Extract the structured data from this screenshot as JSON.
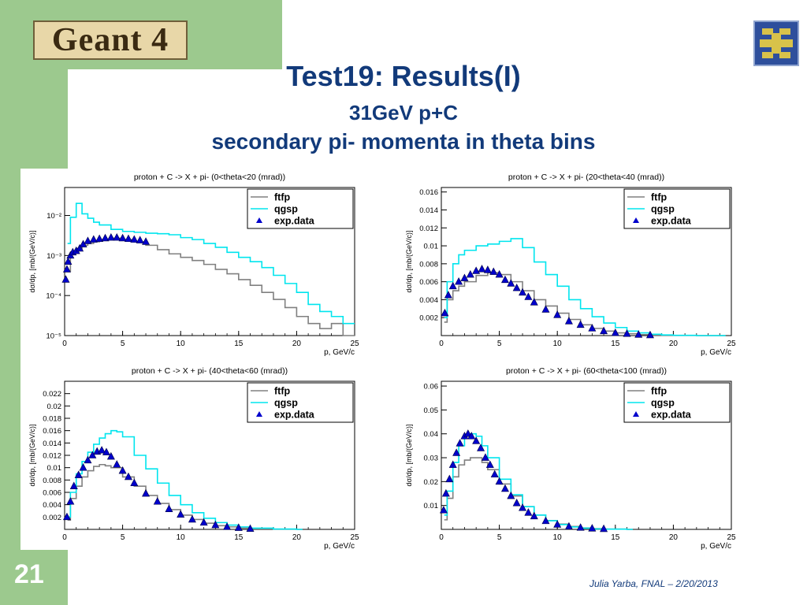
{
  "slide": {
    "logo_text": "Geant 4",
    "title": "Test19: Results(I)",
    "subtitle1": "31GeV p+C",
    "subtitle2": "secondary pi- momenta in theta bins",
    "number": "21",
    "footer": "Julia Yarba, FNAL – 2/20/2013",
    "colors": {
      "sidebar": "#9cc98e",
      "title": "#123a7a",
      "ftfp": "#808080",
      "qgsp": "#00e5ee",
      "exp": "#0000cc"
    }
  },
  "chart_data": [
    {
      "type": "line",
      "title": "proton + C -> X + pi-  (0<theta<20 (mrad))",
      "xlabel": "p, GeV/c",
      "ylabel": "dσ/dp, [mb/(GeV/c)]",
      "log_y": true,
      "xlim": [
        0,
        25
      ],
      "ylim": [
        1e-05,
        0.05
      ],
      "x_ticks": [
        "0",
        "5",
        "10",
        "15",
        "20",
        "25"
      ],
      "y_ticks": [
        "10⁻⁵",
        "10⁻⁴",
        "10⁻³",
        "10⁻²"
      ],
      "legend": "top-right",
      "series": [
        {
          "name": "ftfp",
          "x": [
            0.25,
            0.5,
            1,
            1.5,
            2,
            2.5,
            3,
            4,
            5,
            6,
            7,
            8,
            9,
            10,
            11,
            12,
            13,
            14,
            15,
            16,
            17,
            18,
            19,
            20,
            21,
            22,
            23,
            24,
            24.5
          ],
          "values": [
            0.0004,
            0.0012,
            0.0015,
            0.0018,
            0.002,
            0.0022,
            0.0025,
            0.0027,
            0.0025,
            0.0022,
            0.0018,
            0.0014,
            0.0011,
            0.0009,
            0.00075,
            0.0006,
            0.00045,
            0.00035,
            0.00025,
            0.00018,
            0.00012,
            8e-05,
            5e-05,
            3e-05,
            2e-05,
            1.5e-05,
            2e-05,
            1e-05,
            1e-05
          ]
        },
        {
          "name": "qgsp",
          "x": [
            0.25,
            0.5,
            1,
            1.5,
            2,
            2.5,
            3,
            4,
            5,
            6,
            7,
            8,
            9,
            10,
            11,
            12,
            13,
            14,
            15,
            16,
            17,
            18,
            19,
            20,
            21,
            22,
            23,
            24,
            24.5
          ],
          "values": [
            0.002,
            0.009,
            0.02,
            0.011,
            0.0085,
            0.0068,
            0.0058,
            0.0045,
            0.004,
            0.0038,
            0.0036,
            0.0035,
            0.0033,
            0.0028,
            0.0025,
            0.002,
            0.0016,
            0.0012,
            0.0009,
            0.0007,
            0.0005,
            0.00032,
            0.0002,
            0.00012,
            6e-05,
            4e-05,
            3e-05,
            2e-05,
            2e-05
          ]
        },
        {
          "name": "exp.data",
          "x": [
            0.1,
            0.2,
            0.3,
            0.5,
            0.7,
            1.0,
            1.3,
            1.6,
            2.0,
            2.5,
            3.0,
            3.5,
            4.0,
            4.5,
            5.0,
            5.5,
            6.0,
            6.5,
            7.0
          ],
          "values": [
            0.00025,
            0.00045,
            0.0007,
            0.001,
            0.0012,
            0.0013,
            0.0015,
            0.0019,
            0.0023,
            0.0025,
            0.0026,
            0.0027,
            0.0028,
            0.0028,
            0.0027,
            0.0026,
            0.0025,
            0.0024,
            0.0022
          ]
        }
      ]
    },
    {
      "type": "line",
      "title": "proton + C -> X + pi-  (20<theta<40 (mrad))",
      "xlabel": "p, GeV/c",
      "ylabel": "dσ/dp, [mb/(GeV/c)]",
      "xlim": [
        0,
        25
      ],
      "ylim": [
        0,
        0.0165
      ],
      "x_ticks": [
        "0",
        "5",
        "10",
        "15",
        "20",
        "25"
      ],
      "y_ticks": [
        "0.002",
        "0.004",
        "0.006",
        "0.008",
        "0.01",
        "0.012",
        "0.014",
        "0.016"
      ],
      "legend": "top-right",
      "series": [
        {
          "name": "ftfp",
          "x": [
            0.25,
            0.5,
            1,
            1.5,
            2,
            3,
            4,
            5,
            6,
            7,
            8,
            9,
            10,
            11,
            12,
            13,
            14,
            15,
            16,
            17,
            18,
            19,
            20,
            22,
            24
          ],
          "values": [
            0.0015,
            0.004,
            0.005,
            0.0055,
            0.006,
            0.0067,
            0.007,
            0.0068,
            0.006,
            0.005,
            0.004,
            0.0033,
            0.0025,
            0.0018,
            0.0012,
            0.0008,
            0.0005,
            0.0003,
            0.0002,
            0.0001,
            5e-05,
            2e-05,
            1e-05,
            0.0,
            0.0
          ]
        },
        {
          "name": "qgsp",
          "x": [
            0.25,
            0.5,
            1,
            1.5,
            2,
            3,
            4,
            5,
            6,
            7,
            8,
            9,
            10,
            11,
            12,
            13,
            14,
            15,
            16,
            17,
            18,
            19,
            20,
            22,
            24
          ],
          "values": [
            0.002,
            0.006,
            0.008,
            0.009,
            0.0095,
            0.01,
            0.0102,
            0.0105,
            0.0108,
            0.0098,
            0.0082,
            0.0068,
            0.0055,
            0.004,
            0.003,
            0.0021,
            0.0014,
            0.0009,
            0.0005,
            0.0003,
            0.00015,
            7e-05,
            3e-05,
            0.0,
            0.0
          ]
        },
        {
          "name": "exp.data",
          "x": [
            0.3,
            0.6,
            1,
            1.5,
            2,
            2.5,
            3,
            3.5,
            4,
            4.5,
            5,
            5.5,
            6,
            6.5,
            7,
            7.5,
            8,
            9,
            10,
            11,
            12,
            13,
            14,
            15,
            16,
            17,
            18
          ],
          "values": [
            0.0025,
            0.0045,
            0.0055,
            0.006,
            0.0064,
            0.0068,
            0.0072,
            0.0074,
            0.0073,
            0.0071,
            0.0068,
            0.0062,
            0.0058,
            0.0053,
            0.0048,
            0.0043,
            0.0037,
            0.0029,
            0.0023,
            0.0016,
            0.0012,
            0.0008,
            0.0005,
            0.0003,
            0.0002,
            0.0001,
            5e-05
          ]
        }
      ]
    },
    {
      "type": "line",
      "title": "proton + C -> X + pi-  (40<theta<60 (mrad))",
      "xlabel": "p, GeV/c",
      "ylabel": "dσ/dp, [mb/(GeV/c)]",
      "xlim": [
        0,
        25
      ],
      "ylim": [
        0,
        0.024
      ],
      "x_ticks": [
        "0",
        "5",
        "10",
        "15",
        "20",
        "25"
      ],
      "y_ticks": [
        "0.002",
        "0.004",
        "0.006",
        "0.008",
        "0.01",
        "0.012",
        "0.014",
        "0.016",
        "0.018",
        "0.02",
        "0.022"
      ],
      "legend": "top-right",
      "series": [
        {
          "name": "ftfp",
          "x": [
            0.25,
            0.5,
            1,
            1.5,
            2,
            2.5,
            3,
            3.5,
            4,
            5,
            6,
            7,
            8,
            9,
            10,
            11,
            12,
            13,
            14,
            15,
            16,
            18,
            20
          ],
          "values": [
            0.0015,
            0.005,
            0.007,
            0.0085,
            0.0095,
            0.0102,
            0.0105,
            0.0103,
            0.01,
            0.0085,
            0.007,
            0.0055,
            0.0042,
            0.0032,
            0.0023,
            0.0016,
            0.001,
            0.0006,
            0.0004,
            0.0002,
            0.0001,
            2e-05,
            0.0
          ]
        },
        {
          "name": "qgsp",
          "x": [
            0.25,
            0.5,
            1,
            1.5,
            2,
            2.5,
            3,
            3.5,
            4,
            4.5,
            5,
            6,
            7,
            8,
            9,
            10,
            11,
            12,
            13,
            14,
            15,
            16,
            18,
            20
          ],
          "values": [
            0.002,
            0.006,
            0.009,
            0.011,
            0.0125,
            0.0138,
            0.0148,
            0.0155,
            0.016,
            0.0158,
            0.015,
            0.012,
            0.0098,
            0.0075,
            0.0055,
            0.004,
            0.0027,
            0.0018,
            0.0011,
            0.0007,
            0.0004,
            0.0002,
            5e-05,
            0.0
          ]
        },
        {
          "name": "exp.data",
          "x": [
            0.2,
            0.5,
            0.8,
            1.2,
            1.6,
            2,
            2.4,
            2.8,
            3.2,
            3.6,
            4,
            4.5,
            5,
            5.5,
            6,
            7,
            8,
            9,
            10,
            11,
            12,
            13,
            14,
            15,
            16
          ],
          "values": [
            0.002,
            0.0045,
            0.007,
            0.0088,
            0.01,
            0.0112,
            0.012,
            0.0126,
            0.0128,
            0.0125,
            0.0118,
            0.0105,
            0.0095,
            0.0085,
            0.0075,
            0.0058,
            0.0045,
            0.0033,
            0.0024,
            0.0016,
            0.0011,
            0.0007,
            0.0004,
            0.00025,
            0.0001
          ]
        }
      ]
    },
    {
      "type": "line",
      "title": "proton + C -> X + pi-  (60<theta<100 (mrad))",
      "xlabel": "p, GeV/c",
      "ylabel": "dσ/dp, [mb/(GeV/c)]",
      "xlim": [
        0,
        25
      ],
      "ylim": [
        0,
        0.062
      ],
      "x_ticks": [
        "0",
        "5",
        "10",
        "15",
        "20",
        "25"
      ],
      "y_ticks": [
        "0.01",
        "0.02",
        "0.03",
        "0.04",
        "0.05",
        "0.06"
      ],
      "legend": "top-right",
      "series": [
        {
          "name": "ftfp",
          "x": [
            0.25,
            0.5,
            1,
            1.5,
            2,
            2.5,
            3,
            3.5,
            4,
            5,
            6,
            7,
            8,
            9,
            10,
            11,
            12,
            13,
            14,
            16
          ],
          "values": [
            0.004,
            0.013,
            0.022,
            0.027,
            0.029,
            0.03,
            0.03,
            0.028,
            0.025,
            0.019,
            0.014,
            0.0095,
            0.006,
            0.0037,
            0.0022,
            0.0012,
            0.0006,
            0.0003,
            0.0001,
            0.0
          ]
        },
        {
          "name": "qgsp",
          "x": [
            0.25,
            0.5,
            1,
            1.5,
            2,
            2.5,
            3,
            3.5,
            4,
            5,
            6,
            7,
            8,
            9,
            10,
            11,
            12,
            13,
            14,
            16
          ],
          "values": [
            0.006,
            0.016,
            0.028,
            0.035,
            0.039,
            0.04,
            0.039,
            0.035,
            0.03,
            0.021,
            0.0145,
            0.0095,
            0.006,
            0.0036,
            0.002,
            0.001,
            0.0005,
            0.0002,
            0.0001,
            0.0
          ]
        },
        {
          "name": "exp.data",
          "x": [
            0.2,
            0.4,
            0.7,
            1,
            1.3,
            1.6,
            2,
            2.3,
            2.6,
            3,
            3.4,
            3.8,
            4.2,
            4.6,
            5,
            5.5,
            6,
            6.5,
            7,
            7.5,
            8,
            9,
            10,
            11,
            12,
            13,
            14
          ],
          "values": [
            0.008,
            0.015,
            0.021,
            0.027,
            0.032,
            0.036,
            0.039,
            0.04,
            0.039,
            0.037,
            0.034,
            0.03,
            0.027,
            0.023,
            0.02,
            0.017,
            0.014,
            0.011,
            0.009,
            0.007,
            0.0055,
            0.0035,
            0.002,
            0.0012,
            0.0007,
            0.0004,
            0.0002
          ]
        }
      ]
    }
  ]
}
